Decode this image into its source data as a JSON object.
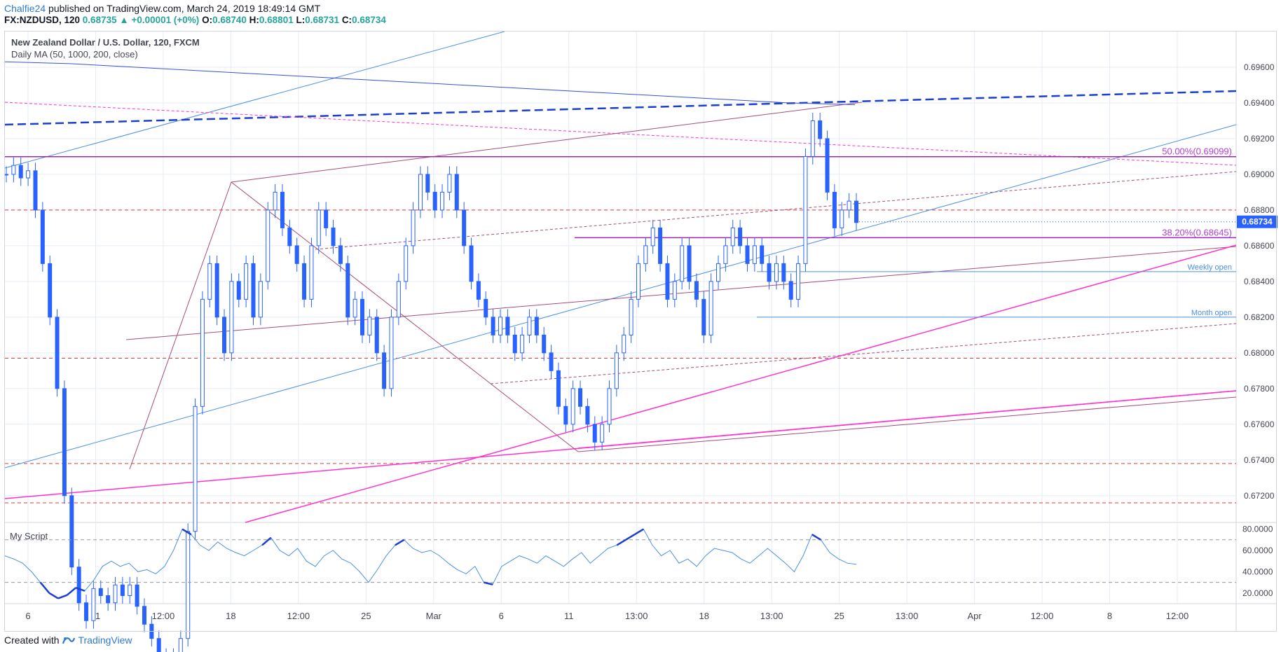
{
  "header": {
    "user": "Chalfie24",
    "published": " published on TradingView.com, March 24, 2019 18:49:14 GMT",
    "symbol": "FX:NZDUSD, 120",
    "last": "0.68735",
    "change": "▲ +0.00001 (+0%)",
    "o_label": "O:",
    "o": "0.68740",
    "h_label": "H:",
    "h": "0.68801",
    "l_label": "L:",
    "l": "0.68731",
    "c_label": "C:",
    "c": "0.68734"
  },
  "legend": {
    "title": "New Zealand Dollar / U.S. Dollar, 120, FXCM",
    "indicator": "Daily MA (50, 1000, 200, close)",
    "oscillator": "My Script"
  },
  "footer": {
    "created_with": "Created with",
    "brand": "TradingView"
  },
  "colors": {
    "candle": "#2962ff",
    "ma": "#3b4fd8",
    "magenta": "#ff33cc",
    "purple": "#9c27b0",
    "mauve": "#a64d79",
    "lightblue": "#4a90e2",
    "red_dash": "#e53935",
    "price_badge": "#2962ff"
  },
  "chart_data": {
    "type": "line",
    "instrument": "NZDUSD",
    "timeframe": "120",
    "ylim": [
      0.6705,
      0.698
    ],
    "y_ticks": [
      "0.69600",
      "0.69400",
      "0.69200",
      "0.69000",
      "0.68800",
      "0.68600",
      "0.68400",
      "0.68200",
      "0.68000",
      "0.67800",
      "0.67600",
      "0.67400",
      "0.67200"
    ],
    "x_ticks": [
      "6",
      "11",
      "12:00",
      "18",
      "12:00",
      "25",
      "Mar",
      "6",
      "11",
      "13:00",
      "18",
      "13:00",
      "25",
      "13:00",
      "Apr",
      "12:00",
      "8",
      "12:00"
    ],
    "current_price": "0.68734",
    "horizontal_levels": [
      {
        "label": "50.00%(0.69099)",
        "value": 0.69099
      },
      {
        "label": "38.20%(0.68645)",
        "value": 0.68645
      },
      {
        "label": "Weekly open",
        "value": 0.68455
      },
      {
        "label": "Month open",
        "value": 0.682
      }
    ],
    "red_dashed_levels": [
      0.688,
      0.6797,
      0.6738,
      0.6716
    ],
    "close_series": [
      0.69,
      0.6905,
      0.6898,
      0.6902,
      0.688,
      0.685,
      0.682,
      0.678,
      0.672,
      0.668,
      0.666,
      0.665,
      0.6668,
      0.6664,
      0.666,
      0.667,
      0.6664,
      0.667,
      0.6658,
      0.6648,
      0.664,
      0.6625,
      0.663,
      0.6624,
      0.664,
      0.67,
      0.677,
      0.683,
      0.685,
      0.682,
      0.68,
      0.684,
      0.683,
      0.685,
      0.682,
      0.684,
      0.688,
      0.689,
      0.687,
      0.686,
      0.685,
      0.683,
      0.686,
      0.688,
      0.687,
      0.686,
      0.685,
      0.682,
      0.683,
      0.681,
      0.682,
      0.68,
      0.678,
      0.682,
      0.684,
      0.686,
      0.688,
      0.69,
      0.689,
      0.688,
      0.689,
      0.69,
      0.688,
      0.686,
      0.684,
      0.683,
      0.682,
      0.681,
      0.682,
      0.681,
      0.68,
      0.681,
      0.682,
      0.681,
      0.68,
      0.679,
      0.677,
      0.676,
      0.678,
      0.677,
      0.676,
      0.675,
      0.676,
      0.678,
      0.68,
      0.681,
      0.683,
      0.685,
      0.686,
      0.687,
      0.685,
      0.683,
      0.684,
      0.686,
      0.684,
      0.683,
      0.681,
      0.684,
      0.685,
      0.686,
      0.687,
      0.686,
      0.685,
      0.686,
      0.685,
      0.684,
      0.685,
      0.684,
      0.683,
      0.685,
      0.691,
      0.693,
      0.692,
      0.689,
      0.687,
      0.688,
      0.6885,
      0.6873
    ],
    "ma_series": [
      0.6963,
      0.6962,
      0.696,
      0.6958,
      0.6956,
      0.6954,
      0.6952,
      0.695,
      0.6948,
      0.6946,
      0.6944,
      0.6942,
      0.694,
      0.6939
    ],
    "oscillator": {
      "name": "My Script",
      "ylim": [
        10,
        85
      ],
      "y_ticks": [
        "80.0000",
        "60.0000",
        "40.0000",
        "20.0000"
      ],
      "bands": [
        70,
        30
      ],
      "values": [
        55,
        52,
        48,
        40,
        30,
        20,
        15,
        18,
        25,
        22,
        32,
        45,
        50,
        45,
        48,
        40,
        42,
        38,
        45,
        60,
        80,
        75,
        65,
        60,
        68,
        62,
        58,
        55,
        60,
        65,
        72,
        60,
        55,
        62,
        50,
        45,
        55,
        60,
        52,
        48,
        40,
        30,
        42,
        55,
        65,
        70,
        62,
        58,
        60,
        55,
        48,
        42,
        38,
        45,
        30,
        28,
        45,
        50,
        55,
        52,
        48,
        55,
        50,
        45,
        52,
        58,
        48,
        55,
        62,
        65,
        70,
        75,
        80,
        65,
        55,
        60,
        48,
        52,
        45,
        55,
        62,
        60,
        58,
        52,
        48,
        55,
        62,
        55,
        48,
        40,
        55,
        75,
        70,
        58,
        52,
        48,
        47
      ]
    }
  }
}
